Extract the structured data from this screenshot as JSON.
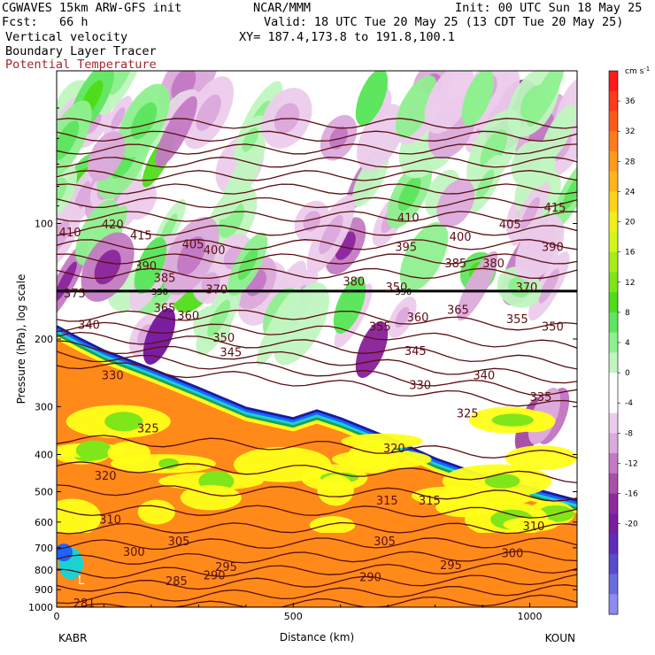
{
  "header": {
    "line1_left": "CGWAVES 15km ARW-GFS init",
    "line1_center": "NCAR/MMM",
    "line1_right": "Init: 00 UTC Sun 18 May 25",
    "fcst": "Fcst:   66 h",
    "valid": "Valid: 18 UTC Tue 20 May 25 (13 CDT Tue 20 May 25)",
    "field1": "Vertical velocity",
    "field2": "Boundary Layer Tracer",
    "field3": "Potential Temperature",
    "xy": "XY= 187.4,173.8 to 191.8,100.1"
  },
  "colors": {
    "theta_contour": "#5a0f12",
    "tropopause_line": "#000000"
  },
  "chart_data": {
    "type": "heatmap",
    "title": "",
    "xlabel": "Distance (km)",
    "ylabel": "Pressure (hPa), log scale",
    "x_ticks": [
      0,
      500,
      1000
    ],
    "xlim": [
      0,
      1100
    ],
    "ylim": [
      1000,
      40
    ],
    "y_scale": "log",
    "y_ticks": [
      100,
      200,
      300,
      400,
      500,
      600,
      700,
      800,
      900,
      1000
    ],
    "endpoints": {
      "left": "KABR",
      "right": "KOUN"
    },
    "colorbar": {
      "unit_label": "cm s",
      "unit_exp": "-1",
      "ticks": [
        36,
        32,
        28,
        24,
        20,
        16,
        12,
        8,
        4,
        0,
        -4,
        -8,
        -12,
        -16,
        -20
      ],
      "colors": [
        "#ff1a1a",
        "#ff3a1a",
        "#ff5a1a",
        "#ff7a1a",
        "#ff9a1a",
        "#ffb41a",
        "#ffd21a",
        "#f0ef1a",
        "#d2f51a",
        "#a8ec1a",
        "#7fe61a",
        "#4fdd1a",
        "#5fe65f",
        "#8ff08f",
        "#c0f5c0",
        "#ffffff",
        "#ffffff",
        "#ecccec",
        "#dcaadc",
        "#c47ac4",
        "#a850a8",
        "#8e2a9e",
        "#7a1ea0",
        "#5e2eb8",
        "#5a4ad0",
        "#6b6be0",
        "#8c8cf0"
      ],
      "bl_tracer_colors": [
        "#ff8a1a",
        "#ffb41a",
        "#ffff1a",
        "#7fe61a",
        "#1a9f5a",
        "#1ad2d2",
        "#1a64ff",
        "#1a1a9f"
      ]
    },
    "theta_contour_labels": [
      {
        "value": "415",
        "x": 155,
        "p": 110
      },
      {
        "value": "420",
        "x": 95,
        "p": 103
      },
      {
        "value": "410",
        "x": 5,
        "p": 108
      },
      {
        "value": "405",
        "x": 265,
        "p": 116
      },
      {
        "value": "400",
        "x": 310,
        "p": 120
      },
      {
        "value": "390",
        "x": 165,
        "p": 132
      },
      {
        "value": "385",
        "x": 205,
        "p": 142
      },
      {
        "value": "375",
        "x": 15,
        "p": 156
      },
      {
        "value": "365",
        "x": 205,
        "p": 170
      },
      {
        "value": "360",
        "x": 255,
        "p": 178
      },
      {
        "value": "370",
        "x": 315,
        "p": 152
      },
      {
        "value": "350",
        "x": 330,
        "p": 203
      },
      {
        "value": "345",
        "x": 345,
        "p": 222
      },
      {
        "value": "340",
        "x": 45,
        "p": 188
      },
      {
        "value": "330",
        "x": 95,
        "p": 255
      },
      {
        "value": "325",
        "x": 170,
        "p": 350
      },
      {
        "value": "320",
        "x": 80,
        "p": 465
      },
      {
        "value": "310",
        "x": 90,
        "p": 605
      },
      {
        "value": "305",
        "x": 235,
        "p": 690
      },
      {
        "value": "300",
        "x": 140,
        "p": 735
      },
      {
        "value": "295",
        "x": 335,
        "p": 805
      },
      {
        "value": "290",
        "x": 310,
        "p": 845
      },
      {
        "value": "285",
        "x": 230,
        "p": 875
      },
      {
        "value": "281",
        "x": 35,
        "p": 1000
      },
      {
        "value": "410",
        "x": 720,
        "p": 99
      },
      {
        "value": "405",
        "x": 935,
        "p": 103
      },
      {
        "value": "415",
        "x": 1030,
        "p": 93
      },
      {
        "value": "400",
        "x": 830,
        "p": 111
      },
      {
        "value": "395",
        "x": 715,
        "p": 118
      },
      {
        "value": "390",
        "x": 1025,
        "p": 118
      },
      {
        "value": "385",
        "x": 820,
        "p": 130
      },
      {
        "value": "380",
        "x": 900,
        "p": 130
      },
      {
        "value": "380",
        "x": 605,
        "p": 145
      },
      {
        "value": "370",
        "x": 970,
        "p": 150
      },
      {
        "value": "365",
        "x": 825,
        "p": 172
      },
      {
        "value": "360",
        "x": 740,
        "p": 180
      },
      {
        "value": "355",
        "x": 660,
        "p": 190
      },
      {
        "value": "355",
        "x": 950,
        "p": 182
      },
      {
        "value": "350",
        "x": 1025,
        "p": 190
      },
      {
        "value": "345",
        "x": 735,
        "p": 220
      },
      {
        "value": "340",
        "x": 880,
        "p": 255
      },
      {
        "value": "335",
        "x": 1000,
        "p": 290
      },
      {
        "value": "330",
        "x": 745,
        "p": 270
      },
      {
        "value": "325",
        "x": 845,
        "p": 320
      },
      {
        "value": "320",
        "x": 690,
        "p": 395
      },
      {
        "value": "315",
        "x": 675,
        "p": 540
      },
      {
        "value": "315",
        "x": 765,
        "p": 540
      },
      {
        "value": "310",
        "x": 985,
        "p": 630
      },
      {
        "value": "305",
        "x": 670,
        "p": 690
      },
      {
        "value": "300",
        "x": 940,
        "p": 740
      },
      {
        "value": "295",
        "x": 810,
        "p": 795
      },
      {
        "value": "290",
        "x": 640,
        "p": 855
      },
      {
        "value": "350",
        "x": 695,
        "p": 150
      }
    ],
    "tropopause_labels": [
      {
        "value": "350",
        "x": 200,
        "p": 150
      },
      {
        "value": "350",
        "x": 715,
        "p": 150
      }
    ],
    "low_marker": {
      "value": "L",
      "x": 45,
      "p": 870
    }
  }
}
